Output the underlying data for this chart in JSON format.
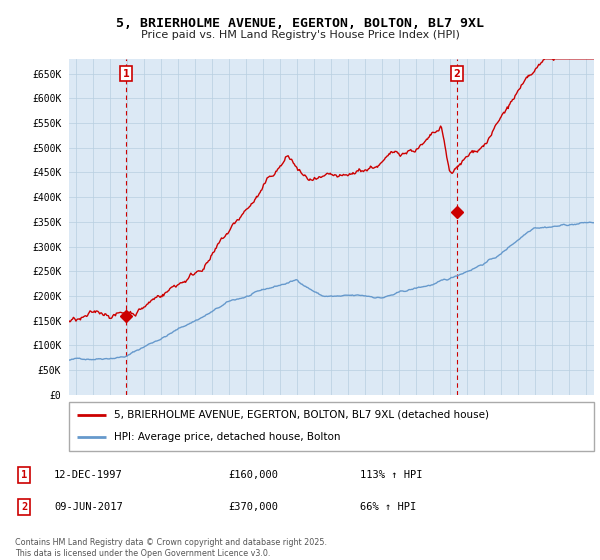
{
  "title": "5, BRIERHOLME AVENUE, EGERTON, BOLTON, BL7 9XL",
  "subtitle": "Price paid vs. HM Land Registry's House Price Index (HPI)",
  "legend_label_red": "5, BRIERHOLME AVENUE, EGERTON, BOLTON, BL7 9XL (detached house)",
  "legend_label_blue": "HPI: Average price, detached house, Bolton",
  "annotation1_date": "12-DEC-1997",
  "annotation1_price": "£160,000",
  "annotation1_hpi": "113% ↑ HPI",
  "annotation2_date": "09-JUN-2017",
  "annotation2_price": "£370,000",
  "annotation2_hpi": "66% ↑ HPI",
  "copyright": "Contains HM Land Registry data © Crown copyright and database right 2025.\nThis data is licensed under the Open Government Licence v3.0.",
  "yticks": [
    0,
    50000,
    100000,
    150000,
    200000,
    250000,
    300000,
    350000,
    400000,
    450000,
    500000,
    550000,
    600000,
    650000
  ],
  "chart_bg": "#dce9f5",
  "fig_bg": "#ffffff",
  "grid_color": "#b8cfe0",
  "red_color": "#cc0000",
  "blue_color": "#6699cc",
  "vline_color": "#cc0000",
  "marker1_x_year": 1997.95,
  "marker1_y": 160000,
  "marker2_x_year": 2017.44,
  "marker2_y": 370000,
  "xlim_left": 1994.6,
  "xlim_right": 2025.5,
  "ylim_top": 680000
}
